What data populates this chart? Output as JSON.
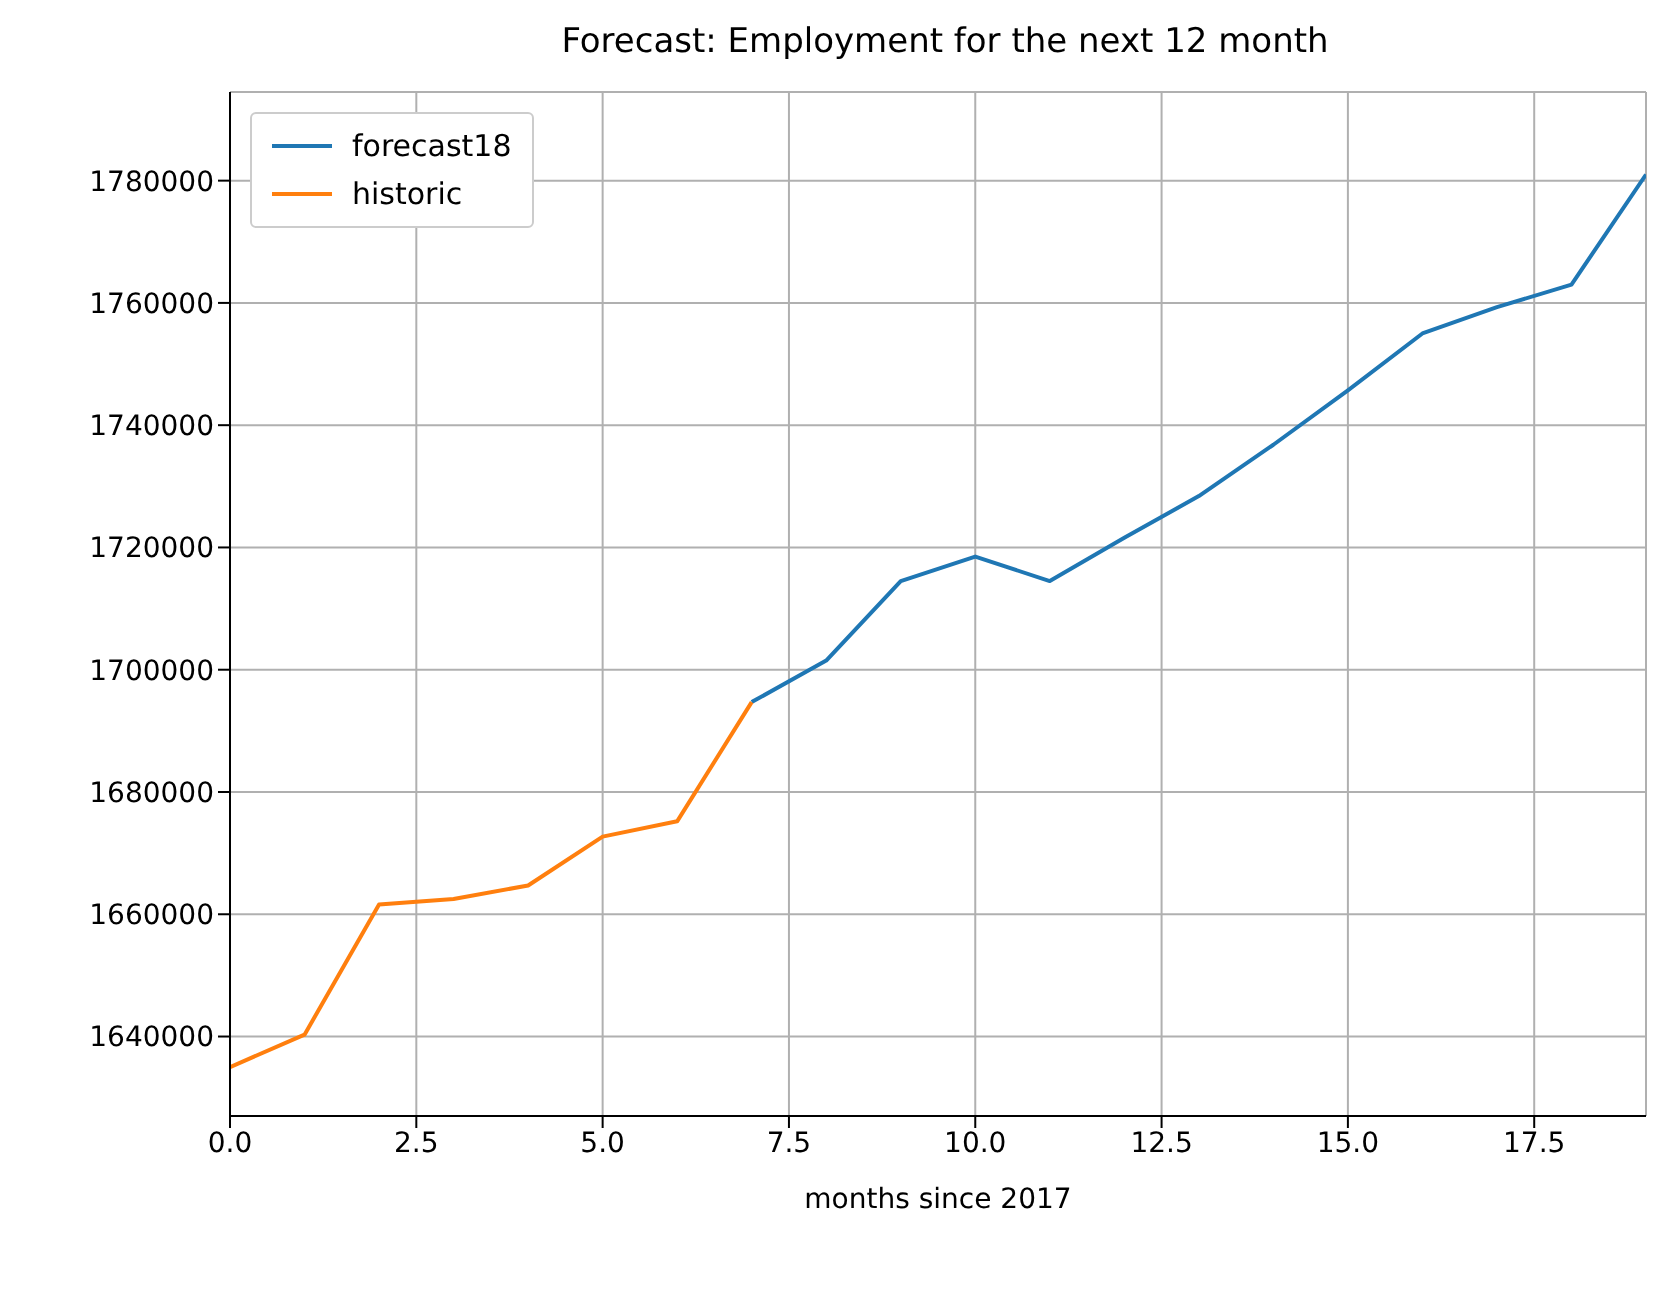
{
  "chart_data": {
    "type": "line",
    "title": "Forecast: Employment for the next 12 month",
    "xlabel": "months since 2017",
    "xlim": [
      0,
      19
    ],
    "xticks": [
      {
        "value": 0,
        "label": "0.0"
      },
      2.5,
      {
        "value": 5,
        "label": "5.0"
      },
      7.5,
      {
        "value": 10,
        "label": "10.0"
      },
      12.5,
      {
        "value": 15,
        "label": "15.0"
      },
      17.5
    ],
    "ylim": [
      1627000,
      1794500
    ],
    "yticks": [
      1640000,
      1660000,
      1680000,
      1700000,
      1720000,
      1740000,
      1760000,
      1780000
    ],
    "grid": true,
    "legend": "top left",
    "series": [
      {
        "name": "forecast18",
        "color": "#1f77b4",
        "x": [
          7,
          8,
          9,
          10,
          11,
          12,
          13,
          14,
          15,
          16,
          17,
          18,
          19
        ],
        "values": [
          1694700,
          1701500,
          1714500,
          1718500,
          1714500,
          1721600,
          1728400,
          1736800,
          1745700,
          1755000,
          1759300,
          1763000,
          1781000
        ]
      },
      {
        "name": "historic",
        "color": "#ff7f0e",
        "x": [
          0,
          1,
          2,
          3,
          4,
          5,
          6,
          7
        ],
        "values": [
          1635000,
          1640300,
          1661600,
          1662500,
          1664700,
          1672700,
          1675200,
          1694700
        ]
      }
    ]
  }
}
